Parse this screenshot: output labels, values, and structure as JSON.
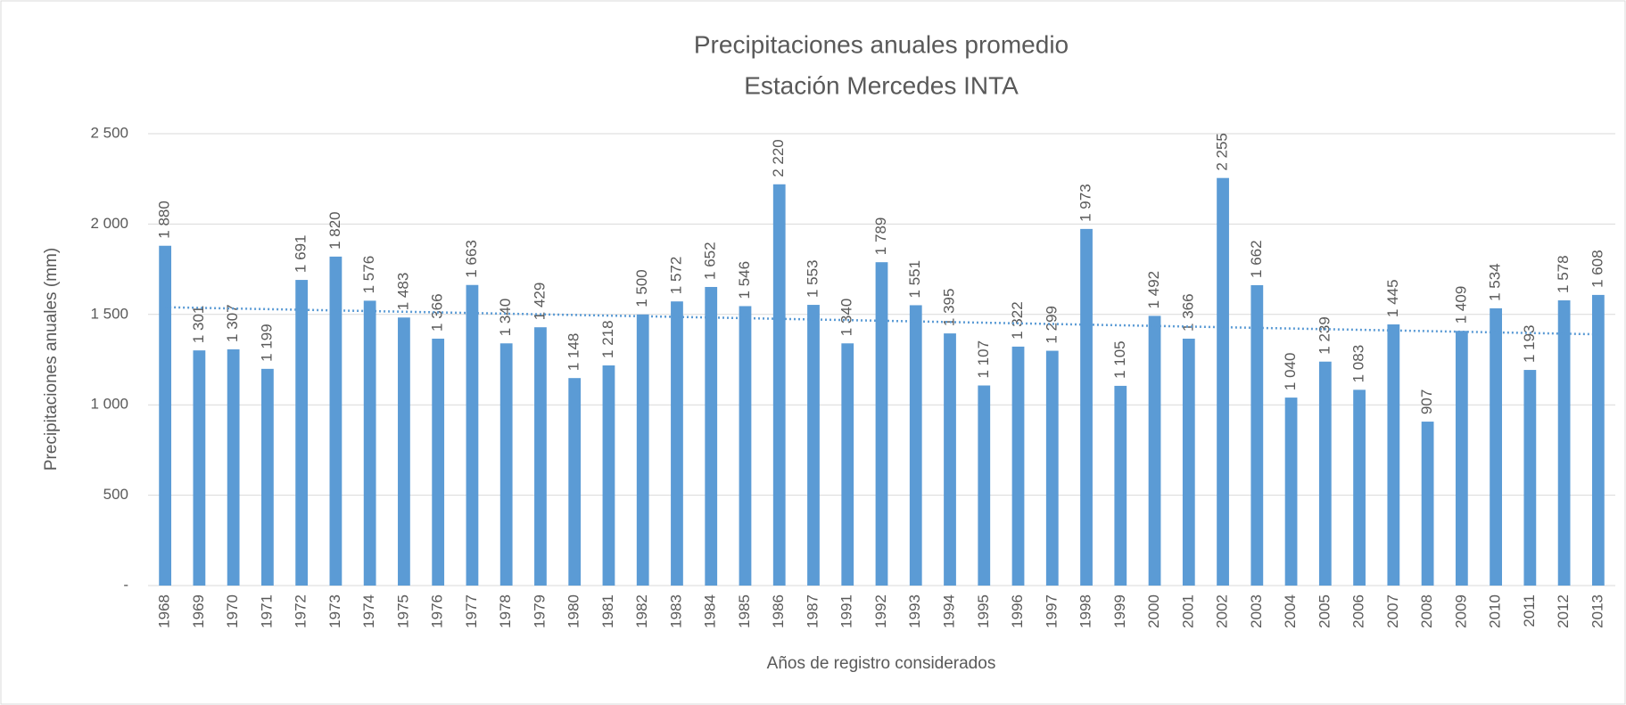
{
  "chart_data": {
    "type": "bar",
    "title": [
      "Precipitaciones anuales promedio",
      "Estación Mercedes INTA"
    ],
    "x_label": "Años de registro considerados",
    "y_label": "Precipitaciones anuales (mm)",
    "categories": [
      "1968",
      "1969",
      "1970",
      "1971",
      "1972",
      "1973",
      "1974",
      "1975",
      "1976",
      "1977",
      "1978",
      "1979",
      "1980",
      "1981",
      "1982",
      "1983",
      "1984",
      "1985",
      "1986",
      "1987",
      "1991",
      "1992",
      "1993",
      "1994",
      "1995",
      "1996",
      "1997",
      "1998",
      "1999",
      "2000",
      "2001",
      "2002",
      "2003",
      "2004",
      "2005",
      "2006",
      "2007",
      "2008",
      "2009",
      "2010",
      "2011",
      "2012",
      "2013"
    ],
    "values": [
      1880,
      1301,
      1307,
      1199,
      1691,
      1820,
      1576,
      1483,
      1366,
      1663,
      1340,
      1429,
      1148,
      1218,
      1500,
      1572,
      1652,
      1546,
      2220,
      1553,
      1340,
      1789,
      1551,
      1395,
      1107,
      1322,
      1299,
      1973,
      1105,
      1492,
      1366,
      2255,
      1662,
      1040,
      1239,
      1083,
      1445,
      907,
      1409,
      1534,
      1193,
      1578,
      1608
    ],
    "value_labels": [
      "1 880",
      "1 301",
      "1 307",
      "1 199",
      "1 691",
      "1 820",
      "1 576",
      "1 483",
      "1 366",
      "1 663",
      "1 340",
      "1 429",
      "1 148",
      "1 218",
      "1 500",
      "1 572",
      "1 652",
      "1 546",
      "2 220",
      "1 553",
      "1 340",
      "1 789",
      "1 551",
      "1 395",
      "1 107",
      "1 322",
      "1 299",
      "1 973",
      "1 105",
      "1 492",
      "1 366",
      "2 255",
      "1 662",
      "1 040",
      "1 239",
      "1 083",
      "1 445",
      "907",
      "1 409",
      "1 534",
      "1 193",
      "1 578",
      "1 608"
    ],
    "color": "#5b9bd5",
    "trendline": {
      "values": [
        1540,
        1390
      ],
      "color": "#5b9bd5"
    },
    "ylim": [
      0,
      2500
    ],
    "yticks": [
      {
        "value": 0,
        "label": "-"
      },
      500,
      {
        "value": 1000,
        "label": "1 000"
      },
      {
        "value": 1500,
        "label": "1 500"
      },
      {
        "value": 2000,
        "label": "2 000"
      },
      {
        "value": 2500,
        "label": "2 500"
      }
    ],
    "grid": true
  }
}
